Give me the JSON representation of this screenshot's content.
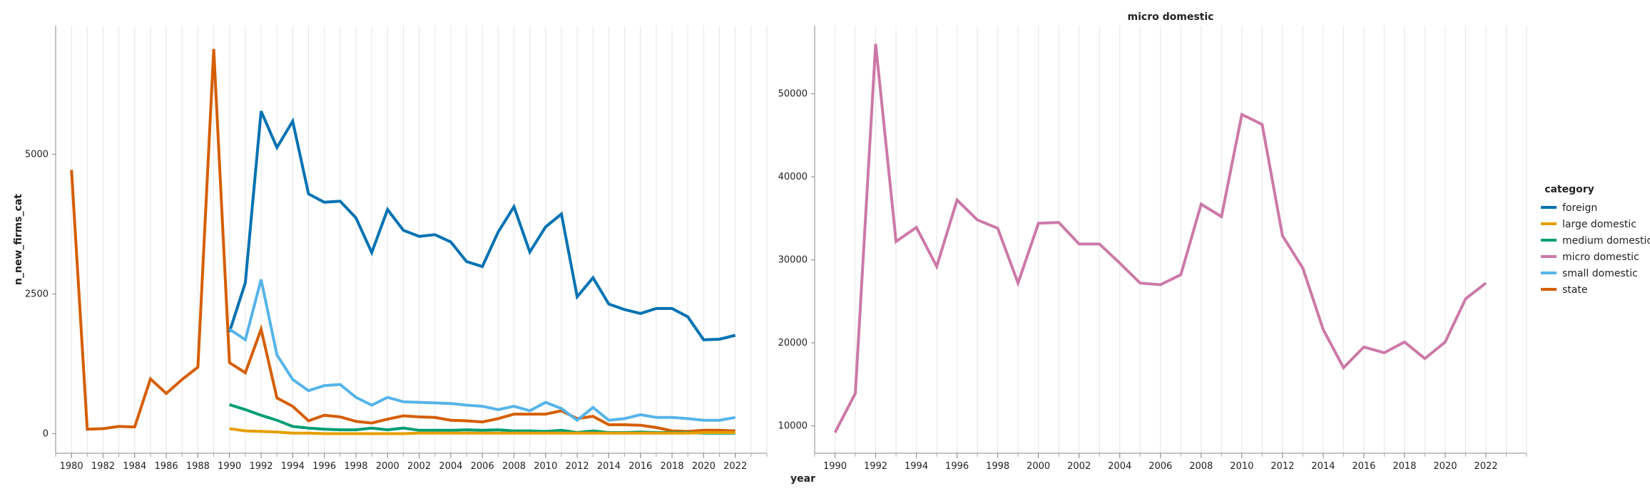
{
  "chart_data": [
    {
      "type": "line",
      "title": "",
      "xlabel": "",
      "ylabel": "n_new_firms_cat",
      "xlim": [
        1979,
        2024
      ],
      "ylim": [
        -350,
        7300
      ],
      "yticks": [
        0,
        2500,
        5000
      ],
      "xticks": [
        1980,
        1982,
        1984,
        1986,
        1988,
        1990,
        1992,
        1994,
        1996,
        1998,
        2000,
        2002,
        2004,
        2006,
        2008,
        2010,
        2012,
        2014,
        2016,
        2018,
        2020,
        2022
      ],
      "grid": "vertical",
      "series": [
        {
          "name": "state",
          "x": [
            1980,
            1981,
            1982,
            1983,
            1984,
            1985,
            1986,
            1987,
            1988,
            1989,
            1990,
            1991,
            1992,
            1993,
            1994,
            1995,
            1996,
            1997,
            1998,
            1999,
            2000,
            2001,
            2002,
            2003,
            2004,
            2005,
            2006,
            2007,
            2008,
            2009,
            2010,
            2011,
            2012,
            2013,
            2014,
            2015,
            2016,
            2017,
            2018,
            2019,
            2020,
            2021,
            2022
          ],
          "values": [
            4720,
            80,
            90,
            130,
            120,
            980,
            720,
            970,
            1190,
            6880,
            1270,
            1090,
            1870,
            640,
            490,
            230,
            330,
            300,
            220,
            190,
            260,
            320,
            300,
            290,
            240,
            230,
            210,
            270,
            350,
            350,
            350,
            410,
            270,
            310,
            160,
            160,
            150,
            110,
            50,
            40,
            60,
            60,
            50
          ]
        },
        {
          "name": "foreign",
          "x": [
            1990,
            1991,
            1992,
            1993,
            1994,
            1995,
            1996,
            1997,
            1998,
            1999,
            2000,
            2001,
            2002,
            2003,
            2004,
            2005,
            2006,
            2007,
            2008,
            2009,
            2010,
            2011,
            2012,
            2013,
            2014,
            2015,
            2016,
            2017,
            2018,
            2019,
            2020,
            2021,
            2022
          ],
          "values": [
            1820,
            2700,
            5770,
            5120,
            5590,
            4290,
            4140,
            4160,
            3860,
            3240,
            4010,
            3640,
            3530,
            3560,
            3430,
            3080,
            2990,
            3610,
            4060,
            3250,
            3700,
            3930,
            2450,
            2790,
            2320,
            2220,
            2150,
            2240,
            2240,
            2090,
            1680,
            1690,
            1760
          ]
        },
        {
          "name": "small domestic",
          "x": [
            1990,
            1991,
            1992,
            1993,
            1994,
            1995,
            1996,
            1997,
            1998,
            1999,
            2000,
            2001,
            2002,
            2003,
            2004,
            2005,
            2006,
            2007,
            2008,
            2009,
            2010,
            2011,
            2012,
            2013,
            2014,
            2015,
            2016,
            2017,
            2018,
            2019,
            2020,
            2021,
            2022
          ],
          "values": [
            1870,
            1680,
            2760,
            1410,
            970,
            770,
            860,
            880,
            650,
            510,
            650,
            570,
            560,
            550,
            540,
            510,
            490,
            430,
            490,
            410,
            560,
            450,
            240,
            470,
            240,
            270,
            340,
            290,
            290,
            270,
            240,
            240,
            290
          ]
        },
        {
          "name": "medium domestic",
          "x": [
            1990,
            1991,
            1992,
            1993,
            1994,
            1995,
            1996,
            1997,
            1998,
            1999,
            2000,
            2001,
            2002,
            2003,
            2004,
            2005,
            2006,
            2007,
            2008,
            2009,
            2010,
            2011,
            2012,
            2013,
            2014,
            2015,
            2016,
            2017,
            2018,
            2019,
            2020,
            2021,
            2022
          ],
          "values": [
            520,
            430,
            330,
            240,
            130,
            100,
            80,
            70,
            70,
            100,
            70,
            100,
            60,
            60,
            60,
            70,
            60,
            70,
            50,
            50,
            40,
            60,
            20,
            50,
            20,
            20,
            30,
            20,
            20,
            20,
            10,
            10,
            10
          ]
        },
        {
          "name": "large domestic",
          "x": [
            1990,
            1991,
            1992,
            1993,
            1994,
            1995,
            1996,
            1997,
            1998,
            1999,
            2000,
            2001,
            2002,
            2003,
            2004,
            2005,
            2006,
            2007,
            2008,
            2009,
            2010,
            2011,
            2012,
            2013,
            2014,
            2015,
            2016,
            2017,
            2018,
            2019,
            2020,
            2021,
            2022
          ],
          "values": [
            90,
            50,
            40,
            30,
            10,
            10,
            0,
            0,
            0,
            0,
            0,
            0,
            10,
            10,
            10,
            10,
            10,
            10,
            10,
            10,
            10,
            10,
            10,
            10,
            10,
            10,
            10,
            10,
            10,
            10,
            20,
            20,
            20
          ]
        }
      ]
    },
    {
      "type": "line",
      "title": "micro domestic",
      "xlabel": "year",
      "ylabel": "",
      "xlim": [
        1989,
        2024
      ],
      "ylim": [
        6700,
        58200
      ],
      "yticks": [
        10000,
        20000,
        30000,
        40000,
        50000
      ],
      "xticks": [
        1990,
        1992,
        1994,
        1996,
        1998,
        2000,
        2002,
        2004,
        2006,
        2008,
        2010,
        2012,
        2014,
        2016,
        2018,
        2020,
        2022
      ],
      "grid": "vertical",
      "series": [
        {
          "name": "micro domestic",
          "x": [
            1990,
            1991,
            1992,
            1993,
            1994,
            1995,
            1996,
            1997,
            1998,
            1999,
            2000,
            2001,
            2002,
            2003,
            2004,
            2005,
            2006,
            2007,
            2008,
            2009,
            2010,
            2011,
            2012,
            2013,
            2014,
            2015,
            2016,
            2017,
            2018,
            2019,
            2020,
            2021,
            2022
          ],
          "values": [
            9200,
            13900,
            56000,
            32200,
            33900,
            29200,
            37200,
            34800,
            33800,
            27200,
            34400,
            34500,
            31900,
            31900,
            29600,
            27200,
            27000,
            28200,
            36700,
            35200,
            47500,
            46300,
            32900,
            29000,
            21600,
            17000,
            19500,
            18800,
            20100,
            18100,
            20100,
            25300,
            27200
          ]
        }
      ]
    }
  ],
  "legend": {
    "title": "category",
    "placement": "right",
    "items": [
      {
        "label": "foreign",
        "color": "#0072B2"
      },
      {
        "label": "large domestic",
        "color": "#E69F00"
      },
      {
        "label": "medium domestic",
        "color": "#009E73"
      },
      {
        "label": "micro domestic",
        "color": "#CC79A7"
      },
      {
        "label": "small domestic",
        "color": "#56B4E9"
      },
      {
        "label": "state",
        "color": "#D55E00"
      }
    ]
  }
}
